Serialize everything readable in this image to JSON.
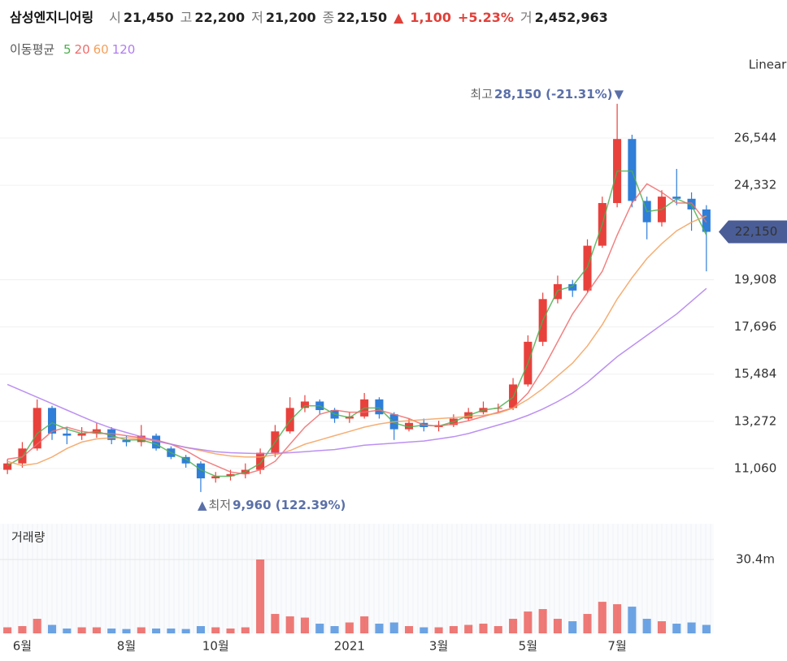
{
  "chart_data": {
    "type": "candlestick",
    "title": "삼성엔지니어링",
    "quote": [
      {
        "label": "시",
        "value": "21,450"
      },
      {
        "label": "고",
        "value": "22,200"
      },
      {
        "label": "저",
        "value": "21,200"
      },
      {
        "label": "종",
        "value": "22,150"
      }
    ],
    "change": {
      "arrow": "▲",
      "amount": "1,100",
      "pct": "+5.23%",
      "color": "#e0413a"
    },
    "trade_volume": {
      "label": "거",
      "value": "2,452,963"
    },
    "ma_label": "이동평균",
    "scale_label": "Linear",
    "high_annotation": {
      "label": "최고",
      "text": "28,150 (-21.31%)",
      "marker": "▼"
    },
    "low_annotation": {
      "label": "최저",
      "text": "9,960 (122.39%)",
      "marker": "▲"
    },
    "last_price_label": "22,150",
    "categories": [
      null,
      "6월",
      null,
      null,
      null,
      null,
      null,
      null,
      "8월",
      null,
      null,
      null,
      null,
      null,
      "10월",
      null,
      null,
      null,
      null,
      null,
      null,
      null,
      null,
      "2021",
      null,
      null,
      null,
      null,
      null,
      "3월",
      null,
      null,
      null,
      null,
      null,
      "5월",
      null,
      null,
      null,
      null,
      null,
      "7월",
      null,
      null,
      null,
      null,
      null,
      null
    ],
    "up_color": "#e8413c",
    "down_color": "#2f7ed8",
    "ohlc": {
      "open": [
        11000,
        11300,
        12000,
        13900,
        12700,
        12600,
        12700,
        12900,
        12400,
        12300,
        12600,
        12000,
        11600,
        11300,
        10600,
        10700,
        10800,
        11000,
        11800,
        12800,
        13900,
        14200,
        13800,
        13400,
        13500,
        14300,
        13600,
        12900,
        13200,
        13000,
        13100,
        13400,
        13700,
        13900,
        13900,
        15000,
        17000,
        19000,
        19700,
        19400,
        21500,
        23500,
        26500,
        23600,
        22600,
        23800,
        23700,
        23200
      ],
      "high": [
        11500,
        12300,
        14300,
        14000,
        13000,
        13000,
        13200,
        13000,
        12600,
        13100,
        12700,
        12100,
        11700,
        11400,
        10900,
        11000,
        11300,
        12000,
        13100,
        14400,
        14500,
        14300,
        13900,
        13700,
        14600,
        14400,
        13700,
        13400,
        13400,
        13300,
        13600,
        13900,
        14200,
        14100,
        15300,
        17300,
        19300,
        20100,
        19900,
        21800,
        23800,
        28150,
        26700,
        23800,
        24100,
        25100,
        24000,
        23400
      ],
      "low": [
        10800,
        11100,
        11900,
        12400,
        12200,
        12400,
        12500,
        12200,
        12100,
        12100,
        11900,
        11500,
        11100,
        9960,
        10400,
        10500,
        10600,
        10800,
        11600,
        12700,
        13700,
        13600,
        13200,
        13200,
        13400,
        13400,
        12400,
        12800,
        12800,
        12800,
        13000,
        13300,
        13600,
        13700,
        13800,
        14900,
        16800,
        18800,
        19100,
        19300,
        21400,
        23300,
        23300,
        21800,
        22400,
        23400,
        22200,
        20300
      ],
      "close": [
        11300,
        12000,
        13900,
        12700,
        12600,
        12700,
        12900,
        12400,
        12300,
        12600,
        12000,
        11600,
        11300,
        10600,
        10700,
        10800,
        11000,
        11800,
        12800,
        13900,
        14200,
        13800,
        13400,
        13500,
        14300,
        13600,
        12900,
        13200,
        13000,
        13100,
        13400,
        13700,
        13900,
        13900,
        15000,
        17000,
        19000,
        19700,
        19400,
        21500,
        23500,
        26500,
        23600,
        22600,
        23800,
        23700,
        23200,
        22150
      ]
    },
    "series": [
      {
        "name": "5",
        "color": "#4caf50",
        "values": [
          11200,
          11600,
          12700,
          13200,
          12900,
          12700,
          12800,
          12600,
          12400,
          12400,
          12200,
          11800,
          11500,
          11000,
          10700,
          10700,
          10900,
          11300,
          12300,
          13300,
          14000,
          14000,
          13600,
          13450,
          13900,
          13900,
          13200,
          13000,
          13100,
          13050,
          13250,
          13550,
          13800,
          13900,
          14400,
          16000,
          18000,
          19400,
          19600,
          20500,
          22500,
          25000,
          25000,
          23100,
          23200,
          23700,
          23400,
          22000
        ]
      },
      {
        "name": "20",
        "color": "#f06b6b",
        "values": [
          11500,
          11600,
          12200,
          12800,
          13000,
          12800,
          12700,
          12700,
          12600,
          12500,
          12400,
          12200,
          11900,
          11500,
          11200,
          10900,
          10800,
          11000,
          11400,
          12200,
          13000,
          13600,
          13800,
          13700,
          13700,
          13800,
          13600,
          13400,
          13100,
          13050,
          13150,
          13300,
          13500,
          13700,
          13900,
          14600,
          15700,
          17000,
          18300,
          19300,
          20300,
          22000,
          23500,
          24400,
          24000,
          23500,
          23500,
          22600
        ]
      },
      {
        "name": "60",
        "color": "#f5a05a",
        "values": [
          11400,
          11200,
          11300,
          11600,
          12000,
          12300,
          12450,
          12500,
          12500,
          12450,
          12350,
          12200,
          12050,
          11900,
          11750,
          11650,
          11600,
          11600,
          11700,
          11900,
          12200,
          12400,
          12600,
          12800,
          13000,
          13150,
          13250,
          13300,
          13350,
          13400,
          13450,
          13500,
          13550,
          13650,
          13900,
          14300,
          14800,
          15400,
          16000,
          16800,
          17800,
          19000,
          20000,
          20900,
          21600,
          22200,
          22600,
          22900
        ]
      },
      {
        "name": "120",
        "color": "#b07cf0",
        "values": [
          15000,
          14700,
          14400,
          14100,
          13800,
          13500,
          13200,
          12950,
          12750,
          12550,
          12350,
          12200,
          12050,
          11950,
          11850,
          11800,
          11780,
          11760,
          11770,
          11800,
          11850,
          11900,
          11950,
          12050,
          12150,
          12200,
          12250,
          12300,
          12350,
          12450,
          12550,
          12700,
          12900,
          13100,
          13300,
          13550,
          13850,
          14200,
          14600,
          15100,
          15700,
          16300,
          16800,
          17300,
          17800,
          18300,
          18900,
          19500
        ]
      }
    ],
    "ylim": [
      8853,
      29589
    ],
    "yticks": [
      {
        "value": 11060,
        "label": "11,060"
      },
      {
        "value": 13272,
        "label": "13,272"
      },
      {
        "value": 15484,
        "label": "15,484"
      },
      {
        "value": 17696,
        "label": "17,696"
      },
      {
        "value": 19908,
        "label": "19,908"
      },
      {
        "value": 24332,
        "label": "24,332"
      },
      {
        "value": 26544,
        "label": "26,544"
      }
    ],
    "grid": true,
    "volume": {
      "label": "거래량",
      "values": [
        2500000,
        3000000,
        6000000,
        3500000,
        2000000,
        2500000,
        2500000,
        2000000,
        1800000,
        2500000,
        2000000,
        2000000,
        1800000,
        3000000,
        2500000,
        2000000,
        2500000,
        30400000,
        8000000,
        7000000,
        6500000,
        4000000,
        3000000,
        4500000,
        7000000,
        4000000,
        4500000,
        3000000,
        2500000,
        2500000,
        3000000,
        3500000,
        4000000,
        3000000,
        6000000,
        9000000,
        10000000,
        6000000,
        5000000,
        8000000,
        13000000,
        12000000,
        11000000,
        6000000,
        5000000,
        4000000,
        4500000,
        3500000
      ],
      "ylim": [
        0,
        45100000
      ],
      "yticks": [
        {
          "value": 30400000,
          "label": "30.4m"
        }
      ]
    }
  }
}
